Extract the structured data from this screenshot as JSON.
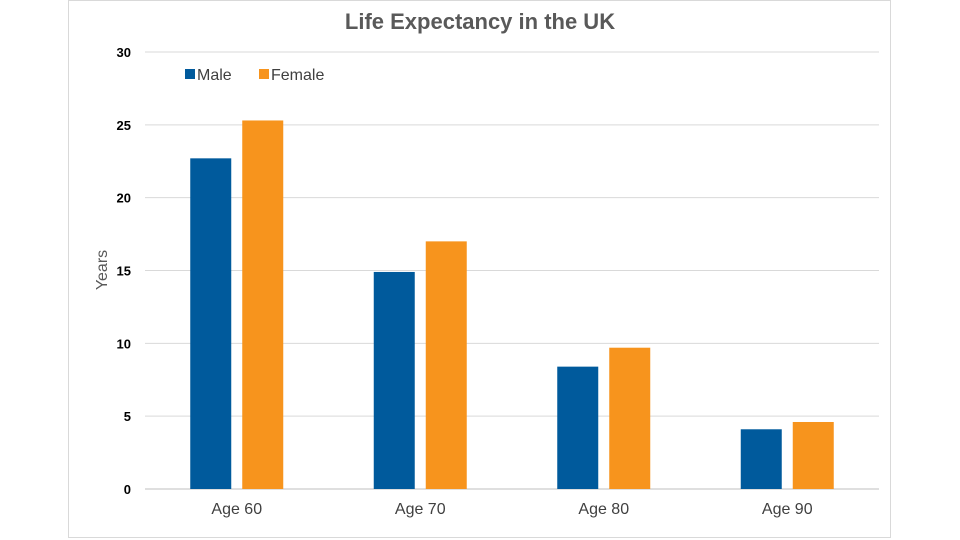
{
  "chart_data": {
    "type": "bar",
    "title": "Life Expectancy in the UK",
    "xlabel": "",
    "ylabel": "Years",
    "categories": [
      "Age 60",
      "Age 70",
      "Age 80",
      "Age 90"
    ],
    "series": [
      {
        "name": "Male",
        "color": "#005A9C",
        "values": [
          22.7,
          14.9,
          8.4,
          4.1
        ]
      },
      {
        "name": "Female",
        "color": "#F7941D",
        "values": [
          25.3,
          17.0,
          9.7,
          4.6
        ]
      }
    ],
    "ylim": [
      0,
      30
    ],
    "yticks": [
      0,
      5,
      10,
      15,
      20,
      25,
      30
    ],
    "grid": true,
    "legend_position": "top-left"
  }
}
